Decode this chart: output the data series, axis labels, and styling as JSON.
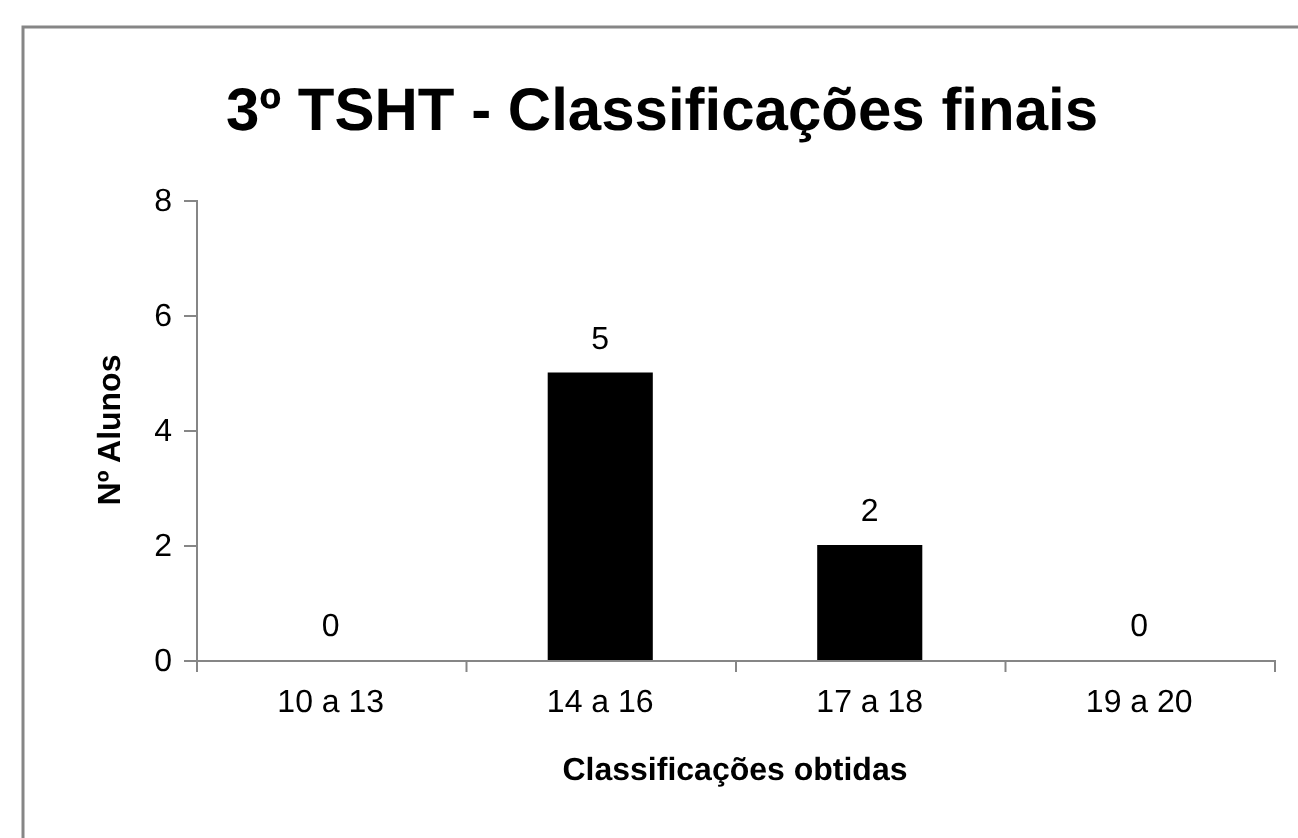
{
  "chart_data": {
    "type": "bar",
    "title": "3º TSHT - Classificações finais",
    "xlabel": "Classificações obtidas",
    "ylabel": "Nº Alunos",
    "categories": [
      "10 a 13",
      "14 a 16",
      "17 a 18",
      "19 a 20"
    ],
    "values": [
      0,
      5,
      2,
      0
    ],
    "color": "#000000",
    "ylim": [
      0,
      8
    ],
    "yticks": [
      0,
      2,
      4,
      6,
      8
    ],
    "data_labels": true
  }
}
